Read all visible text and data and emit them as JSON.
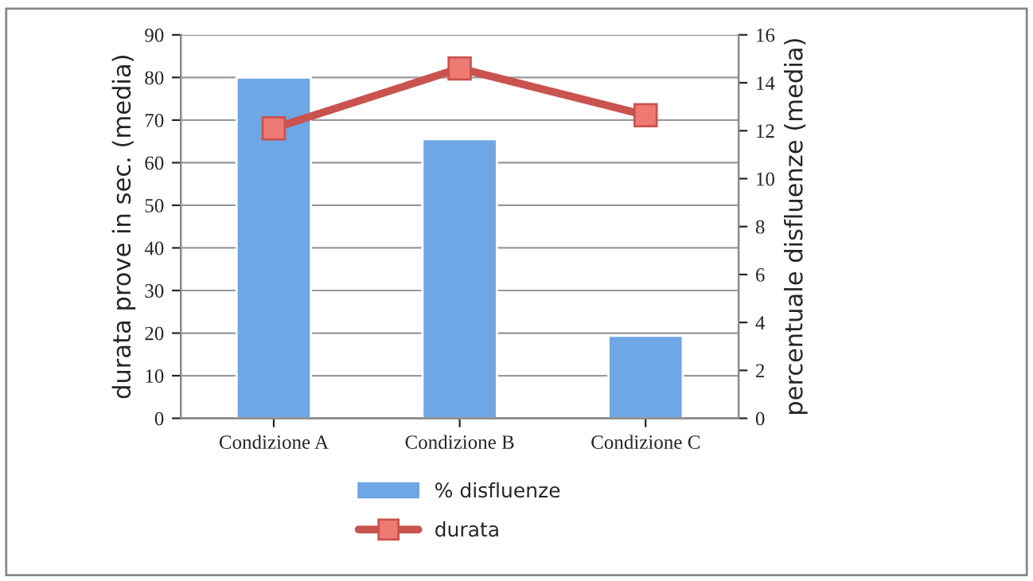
{
  "chart_data": {
    "type": "bar",
    "categories": [
      "Condizione A",
      "Condizione B",
      "Condizione C"
    ],
    "series": [
      {
        "name": "% disfluenze",
        "color": "#6fa6e6",
        "values": [
          80,
          65.5,
          19.4
        ]
      },
      {
        "name": "durata",
        "type": "line",
        "axis": "y2",
        "color": "#c9534e",
        "marker": "square",
        "values": [
          12.1,
          14.6,
          12.65
        ]
      }
    ],
    "ylabel": "durata prove in sec. (media)",
    "y2label": "percentuale disfluenze (media)",
    "ylim": [
      0,
      90
    ],
    "yticks": [
      0,
      10,
      20,
      30,
      40,
      50,
      60,
      70,
      80,
      90
    ],
    "y2lim": [
      0,
      16
    ],
    "y2ticks": [
      0,
      2,
      4,
      6,
      8,
      10,
      12,
      14,
      16
    ],
    "grid": "y",
    "legend": "bottom"
  }
}
